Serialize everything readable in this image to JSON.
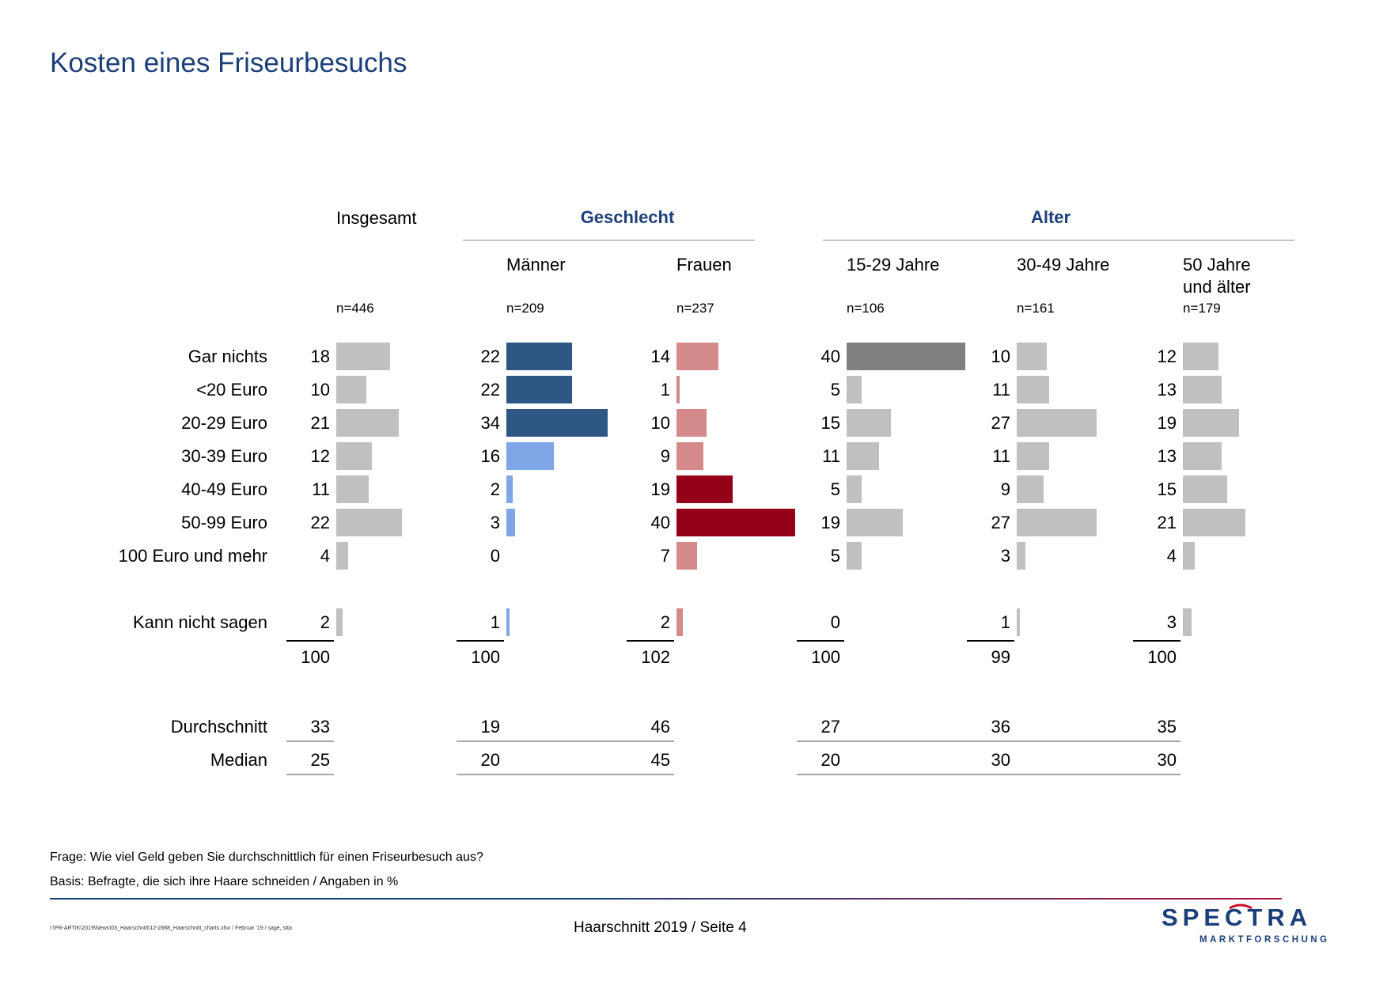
{
  "title": "Kosten eines Friseurbesuchs",
  "groups": {
    "geschlecht": "Geschlecht",
    "alter": "Alter"
  },
  "columns": [
    {
      "label": "Insgesamt",
      "n": "n=446",
      "color": "#c0c0c0"
    },
    {
      "label": "Männer",
      "n": "n=209",
      "color": "#2e5784"
    },
    {
      "label": "Frauen",
      "n": "n=237",
      "color": "#d48a8b"
    },
    {
      "label": "15-29 Jahre",
      "n": "n=106",
      "color": "#c0c0c0"
    },
    {
      "label": "30-49 Jahre",
      "n": "n=161",
      "color": "#c0c0c0"
    },
    {
      "label": "50 Jahre\nund älter",
      "n": "n=179",
      "color": "#c0c0c0"
    }
  ],
  "highlight_colors": {
    "maenner_light": "#7fa7e8",
    "frauen_dark": "#940018",
    "alter_max": "#808080"
  },
  "rows": {
    "labels": [
      "Gar nichts",
      "<20 Euro",
      "20-29 Euro",
      "30-39 Euro",
      "40-49 Euro",
      "50-99 Euro",
      "100 Euro und mehr",
      "Kann nicht sagen"
    ]
  },
  "totals": [
    "100",
    "100",
    "102",
    "100",
    "99",
    "100"
  ],
  "stats": {
    "durchschnitt_label": "Durchschnitt",
    "median_label": "Median",
    "durchschnitt": [
      "33",
      "19",
      "46",
      "27",
      "36",
      "35"
    ],
    "median": [
      "25",
      "20",
      "45",
      "20",
      "30",
      "30"
    ]
  },
  "notes": {
    "frage": "Frage: Wie viel Geld geben Sie durchschnittlich für einen Friseurbesuch aus?",
    "basis": "Basis: Befragte, die sich ihre Haare schneiden / Angaben in %"
  },
  "footer": {
    "filepath": "I:\\PR-ARTIK\\2019\\News\\03_Haarschnitt\\12-2888_Haarschnitt_charts.xlsx / Februar '19 / sage, stta",
    "page": "Haarschnitt 2019  /  Seite  4"
  },
  "logo": {
    "word": "SPECTRA",
    "sub": "MARKTFORSCHUNG"
  },
  "chart_data": {
    "type": "bar",
    "categories": [
      "Gar nichts",
      "<20 Euro",
      "20-29 Euro",
      "30-39 Euro",
      "40-49 Euro",
      "50-99 Euro",
      "100 Euro und mehr",
      "Kann nicht sagen"
    ],
    "series": [
      {
        "name": "Insgesamt",
        "values": [
          18,
          10,
          21,
          12,
          11,
          22,
          4,
          2
        ]
      },
      {
        "name": "Männer",
        "values": [
          22,
          22,
          34,
          16,
          2,
          3,
          0,
          1
        ]
      },
      {
        "name": "Frauen",
        "values": [
          14,
          1,
          10,
          9,
          19,
          40,
          7,
          2
        ]
      },
      {
        "name": "15-29 Jahre",
        "values": [
          40,
          5,
          15,
          11,
          5,
          19,
          5,
          0
        ]
      },
      {
        "name": "30-49 Jahre",
        "values": [
          10,
          11,
          27,
          11,
          9,
          27,
          3,
          1
        ]
      },
      {
        "name": "50 Jahre und älter",
        "values": [
          12,
          13,
          19,
          13,
          15,
          21,
          4,
          3
        ]
      }
    ],
    "bar_colors": [
      [
        "#c0c0c0",
        "#c0c0c0",
        "#c0c0c0",
        "#c0c0c0",
        "#c0c0c0",
        "#c0c0c0",
        "#c0c0c0",
        "#c0c0c0"
      ],
      [
        "#2e5784",
        "#2e5784",
        "#2e5784",
        "#7fa7e8",
        "#7fa7e8",
        "#7fa7e8",
        "#7fa7e8",
        "#7fa7e8"
      ],
      [
        "#d48a8b",
        "#d48a8b",
        "#d48a8b",
        "#d48a8b",
        "#940018",
        "#940018",
        "#d48a8b",
        "#d48a8b"
      ],
      [
        "#808080",
        "#c0c0c0",
        "#c0c0c0",
        "#c0c0c0",
        "#c0c0c0",
        "#c0c0c0",
        "#c0c0c0",
        "#c0c0c0"
      ],
      [
        "#c0c0c0",
        "#c0c0c0",
        "#c0c0c0",
        "#c0c0c0",
        "#c0c0c0",
        "#c0c0c0",
        "#c0c0c0",
        "#c0c0c0"
      ],
      [
        "#c0c0c0",
        "#c0c0c0",
        "#c0c0c0",
        "#c0c0c0",
        "#c0c0c0",
        "#c0c0c0",
        "#c0c0c0",
        "#c0c0c0"
      ]
    ],
    "value_max": 40,
    "unit": "%"
  }
}
